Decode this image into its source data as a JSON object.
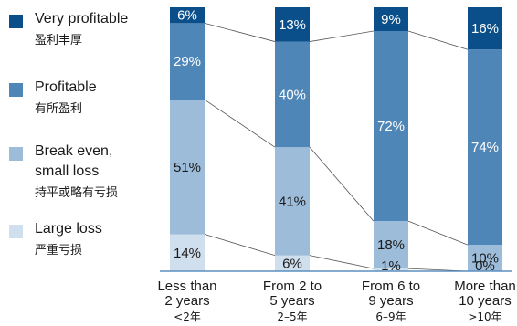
{
  "legend": [
    {
      "en": "Very profitable",
      "en2": "",
      "zh": "盈利丰厚",
      "color": "#0b4f8a"
    },
    {
      "en": "Profitable",
      "en2": "",
      "zh": "有所盈利",
      "color": "#4f86b8"
    },
    {
      "en": "Break even,",
      "en2": "small loss",
      "zh": "持平或略有亏损",
      "color": "#9cbcda"
    },
    {
      "en": "Large loss",
      "en2": "",
      "zh": "严重亏损",
      "color": "#cfdfee"
    }
  ],
  "chart_data": {
    "type": "bar",
    "stacked": true,
    "ylim": [
      0,
      100
    ],
    "categories": [
      {
        "line1": "Less than",
        "line2": "2 years",
        "zh": "<2年"
      },
      {
        "line1": "From 2 to",
        "line2": "5 years",
        "zh": "2–5年"
      },
      {
        "line1": "From 6 to",
        "line2": "9 years",
        "zh": "6–9年"
      },
      {
        "line1": "More than",
        "line2": "10 years",
        "zh": ">10年"
      }
    ],
    "series": [
      {
        "name": "Large loss",
        "values": [
          14,
          6,
          1,
          0
        ],
        "labels": [
          "14%",
          "6%",
          "1%",
          "0%"
        ],
        "color": "#cfdfee",
        "text_color": "#1a1a1a"
      },
      {
        "name": "Break even, small loss",
        "values": [
          51,
          41,
          18,
          10
        ],
        "labels": [
          "51%",
          "41%",
          "18%",
          "10%"
        ],
        "color": "#9cbcda",
        "text_color": "#1a1a1a"
      },
      {
        "name": "Profitable",
        "values": [
          29,
          40,
          72,
          74
        ],
        "labels": [
          "29%",
          "40%",
          "72%",
          "74%"
        ],
        "color": "#4f86b8",
        "text_color": "#ffffff"
      },
      {
        "name": "Very profitable",
        "values": [
          6,
          13,
          9,
          16
        ],
        "labels": [
          "6%",
          "13%",
          "9%",
          "16%"
        ],
        "color": "#0b4f8a",
        "text_color": "#ffffff"
      }
    ],
    "axis_color": "#5b8fbf",
    "connector_color": "#555555"
  }
}
